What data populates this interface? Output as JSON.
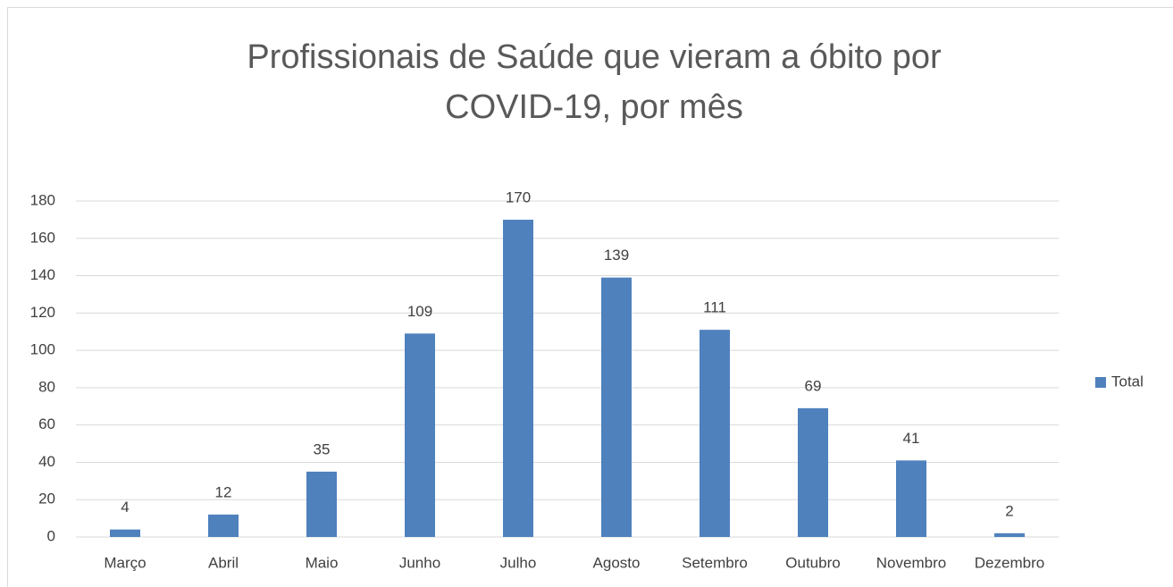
{
  "chart_data": {
    "type": "bar",
    "title": "Profissionais de Saúde que vieram a óbito por COVID-19, por mês",
    "categories": [
      "Março",
      "Abril",
      "Maio",
      "Junho",
      "Julho",
      "Agosto",
      "Setembro",
      "Outubro",
      "Novembro",
      "Dezembro"
    ],
    "series": [
      {
        "name": "Total",
        "color": "#4f81bd",
        "values": [
          4,
          12,
          35,
          109,
          170,
          139,
          111,
          69,
          41,
          2
        ]
      }
    ],
    "ylim": [
      0,
      180
    ],
    "yticks": [
      0,
      20,
      40,
      60,
      80,
      100,
      120,
      140,
      160,
      180
    ],
    "grid": true,
    "legend": "right"
  }
}
